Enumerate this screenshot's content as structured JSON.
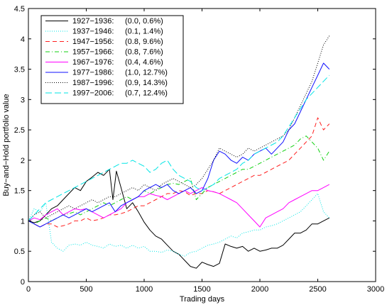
{
  "chart_data": {
    "type": "line",
    "title": "",
    "xlabel": "Trading days",
    "ylabel": "Buy−and−Hold portfolio value",
    "xlim": [
      0,
      3000
    ],
    "ylim": [
      0,
      4.5
    ],
    "xticks": [
      0,
      500,
      1000,
      1500,
      2000,
      2500,
      3000
    ],
    "yticks": [
      0,
      0.5,
      1,
      1.5,
      2,
      2.5,
      3,
      3.5,
      4,
      4.5
    ],
    "grid": false,
    "legend_position": "top-left",
    "series": [
      {
        "name": "1927−1936:",
        "stats": "(0.0, 0.6%)",
        "color": "#000000",
        "dash": "solid",
        "x": [
          0,
          50,
          100,
          150,
          200,
          250,
          300,
          350,
          400,
          450,
          500,
          550,
          600,
          650,
          700,
          730,
          760,
          800,
          850,
          900,
          950,
          1000,
          1050,
          1100,
          1150,
          1200,
          1250,
          1300,
          1350,
          1400,
          1450,
          1500,
          1550,
          1600,
          1650,
          1700,
          1750,
          1800,
          1850,
          1900,
          1950,
          2000,
          2050,
          2100,
          2150,
          2200,
          2250,
          2300,
          2350,
          2400,
          2450,
          2500,
          2550,
          2600
        ],
        "y": [
          1.0,
          0.97,
          1.0,
          1.1,
          1.2,
          1.25,
          1.35,
          1.45,
          1.55,
          1.5,
          1.65,
          1.72,
          1.8,
          1.75,
          1.85,
          1.35,
          1.82,
          1.55,
          1.2,
          1.3,
          1.15,
          0.98,
          0.85,
          0.75,
          0.7,
          0.6,
          0.5,
          0.45,
          0.35,
          0.25,
          0.22,
          0.32,
          0.28,
          0.25,
          0.3,
          0.62,
          0.58,
          0.55,
          0.58,
          0.5,
          0.55,
          0.5,
          0.52,
          0.55,
          0.55,
          0.6,
          0.7,
          0.8,
          0.8,
          0.85,
          0.95,
          0.95,
          1.0,
          1.05
        ]
      },
      {
        "name": "1937−1946:",
        "stats": "(0.1, 1.4%)",
        "color": "#00e5e5",
        "dash": "dotted",
        "x": [
          0,
          50,
          100,
          150,
          200,
          250,
          300,
          350,
          400,
          450,
          500,
          550,
          600,
          650,
          700,
          750,
          800,
          850,
          900,
          950,
          1000,
          1050,
          1100,
          1150,
          1200,
          1250,
          1300,
          1350,
          1400,
          1450,
          1500,
          1550,
          1600,
          1650,
          1700,
          1750,
          1800,
          1850,
          1900,
          1950,
          2000,
          2050,
          2100,
          2150,
          2200,
          2250,
          2300,
          2350,
          2400,
          2450,
          2500,
          2550,
          2600
        ],
        "y": [
          1.0,
          1.2,
          1.15,
          1.3,
          0.65,
          0.55,
          0.5,
          0.6,
          0.62,
          0.6,
          0.65,
          0.6,
          0.58,
          0.55,
          0.62,
          0.58,
          0.6,
          0.55,
          0.6,
          0.55,
          0.58,
          0.5,
          0.5,
          0.48,
          0.52,
          0.5,
          0.45,
          0.42,
          0.48,
          0.5,
          0.55,
          0.6,
          0.62,
          0.65,
          0.7,
          0.75,
          0.72,
          0.8,
          0.82,
          0.85,
          0.85,
          0.9,
          0.92,
          0.95,
          1.0,
          1.05,
          1.1,
          1.15,
          1.25,
          1.35,
          1.45,
          1.15,
          1.05
        ]
      },
      {
        "name": "1947−1956:",
        "stats": "(0.8, 9.6%)",
        "color": "#ff2020",
        "dash": "dashed",
        "x": [
          0,
          50,
          100,
          150,
          200,
          250,
          300,
          350,
          400,
          450,
          500,
          550,
          600,
          650,
          700,
          750,
          800,
          850,
          900,
          950,
          1000,
          1050,
          1100,
          1150,
          1200,
          1250,
          1300,
          1350,
          1400,
          1450,
          1500,
          1550,
          1600,
          1650,
          1700,
          1750,
          1800,
          1850,
          1900,
          1950,
          2000,
          2050,
          2100,
          2150,
          2200,
          2250,
          2300,
          2350,
          2400,
          2450,
          2500,
          2550,
          2600
        ],
        "y": [
          1.0,
          0.95,
          0.9,
          0.95,
          0.95,
          0.9,
          0.92,
          0.95,
          1.0,
          1.0,
          1.05,
          1.0,
          1.02,
          1.05,
          1.1,
          1.1,
          1.12,
          1.15,
          1.2,
          1.25,
          1.25,
          1.3,
          1.35,
          1.4,
          1.45,
          1.45,
          1.5,
          1.48,
          1.42,
          1.45,
          1.45,
          1.5,
          1.48,
          1.45,
          1.5,
          1.55,
          1.6,
          1.65,
          1.7,
          1.75,
          1.75,
          1.8,
          1.85,
          1.9,
          1.95,
          2.0,
          2.1,
          2.2,
          2.3,
          2.4,
          2.7,
          2.5,
          2.6
        ]
      },
      {
        "name": "1957−1966:",
        "stats": "(0.8, 7.6%)",
        "color": "#10d010",
        "dash": "dashdot",
        "x": [
          0,
          50,
          100,
          150,
          200,
          250,
          300,
          350,
          400,
          450,
          500,
          550,
          600,
          650,
          700,
          750,
          800,
          850,
          900,
          950,
          1000,
          1050,
          1100,
          1150,
          1200,
          1250,
          1300,
          1350,
          1400,
          1450,
          1500,
          1550,
          1600,
          1650,
          1700,
          1750,
          1800,
          1850,
          1900,
          1950,
          2000,
          2050,
          2100,
          2150,
          2200,
          2250,
          2300,
          2350,
          2400,
          2450,
          2500,
          2550,
          2600
        ],
        "y": [
          1.0,
          0.95,
          1.0,
          1.05,
          1.0,
          1.05,
          1.1,
          1.12,
          1.15,
          1.1,
          1.15,
          1.2,
          1.25,
          1.3,
          1.25,
          1.3,
          1.35,
          1.4,
          1.35,
          1.4,
          1.5,
          1.45,
          1.5,
          1.55,
          1.6,
          1.62,
          1.6,
          1.65,
          1.7,
          1.35,
          1.45,
          1.55,
          1.6,
          1.65,
          1.7,
          1.75,
          1.8,
          1.85,
          1.85,
          1.9,
          1.95,
          2.0,
          2.05,
          2.1,
          2.15,
          2.2,
          2.25,
          2.35,
          2.4,
          2.3,
          2.2,
          2.0,
          2.15
        ]
      },
      {
        "name": "1967−1976:",
        "stats": "(0.4, 4.6%)",
        "color": "#ff00ff",
        "dash": "solid",
        "x": [
          0,
          50,
          100,
          150,
          200,
          250,
          300,
          350,
          400,
          450,
          500,
          550,
          600,
          650,
          700,
          750,
          800,
          850,
          900,
          950,
          1000,
          1050,
          1100,
          1150,
          1200,
          1250,
          1300,
          1350,
          1400,
          1450,
          1500,
          1550,
          1600,
          1650,
          1700,
          1750,
          1800,
          1850,
          1900,
          1950,
          2000,
          2050,
          2100,
          2150,
          2200,
          2250,
          2300,
          2350,
          2400,
          2450,
          2500,
          2550,
          2600
        ],
        "y": [
          1.0,
          1.05,
          1.02,
          1.1,
          1.15,
          1.2,
          1.1,
          1.15,
          1.2,
          1.18,
          1.2,
          1.15,
          1.1,
          1.05,
          1.1,
          1.15,
          1.2,
          1.3,
          1.35,
          1.4,
          1.4,
          1.45,
          1.42,
          1.4,
          1.35,
          1.4,
          1.45,
          1.5,
          1.45,
          1.5,
          1.55,
          1.5,
          1.48,
          1.45,
          1.4,
          1.35,
          1.3,
          1.2,
          1.1,
          1.0,
          0.9,
          1.05,
          1.1,
          1.15,
          1.2,
          1.3,
          1.35,
          1.4,
          1.45,
          1.5,
          1.5,
          1.55,
          1.6
        ]
      },
      {
        "name": "1977−1986:",
        "stats": "(1.0, 12.7%)",
        "color": "#1010ff",
        "dash": "solid",
        "x": [
          0,
          50,
          100,
          150,
          200,
          250,
          300,
          350,
          400,
          450,
          500,
          550,
          600,
          650,
          700,
          750,
          800,
          850,
          900,
          950,
          1000,
          1050,
          1100,
          1150,
          1200,
          1250,
          1300,
          1350,
          1400,
          1450,
          1500,
          1550,
          1600,
          1650,
          1700,
          1750,
          1800,
          1850,
          1900,
          1950,
          2000,
          2050,
          2100,
          2150,
          2200,
          2250,
          2300,
          2350,
          2400,
          2450,
          2500,
          2550,
          2600
        ],
        "y": [
          1.0,
          0.95,
          0.9,
          0.95,
          1.0,
          1.05,
          1.1,
          1.05,
          1.1,
          1.15,
          1.2,
          1.15,
          1.2,
          1.25,
          1.3,
          1.15,
          1.25,
          1.3,
          1.35,
          1.4,
          1.5,
          1.55,
          1.6,
          1.55,
          1.6,
          1.5,
          1.45,
          1.5,
          1.55,
          1.45,
          1.5,
          1.7,
          2.0,
          2.15,
          2.1,
          2.0,
          1.95,
          2.05,
          2.0,
          2.1,
          2.15,
          2.2,
          2.1,
          2.2,
          2.3,
          2.5,
          2.6,
          2.8,
          3.0,
          3.2,
          3.4,
          3.6,
          3.5
        ]
      },
      {
        "name": "1987−1996:",
        "stats": "(0.9, 14.3%)",
        "color": "#000000",
        "dash": "dotted",
        "x": [
          0,
          50,
          100,
          150,
          200,
          250,
          300,
          350,
          400,
          450,
          500,
          550,
          600,
          650,
          700,
          750,
          800,
          850,
          900,
          950,
          1000,
          1050,
          1100,
          1150,
          1200,
          1250,
          1300,
          1350,
          1400,
          1450,
          1500,
          1550,
          1600,
          1650,
          1700,
          1750,
          1800,
          1850,
          1900,
          1950,
          2000,
          2050,
          2100,
          2150,
          2200,
          2250,
          2300,
          2350,
          2400,
          2450,
          2500,
          2550,
          2600
        ],
        "y": [
          1.0,
          1.1,
          1.15,
          1.05,
          1.1,
          1.15,
          1.2,
          1.25,
          1.2,
          1.25,
          1.3,
          1.35,
          1.3,
          1.35,
          1.4,
          1.4,
          1.45,
          1.5,
          1.55,
          1.5,
          1.6,
          1.55,
          1.5,
          1.6,
          1.65,
          1.7,
          1.65,
          1.6,
          1.55,
          1.6,
          1.7,
          1.85,
          2.0,
          2.2,
          2.15,
          2.1,
          2.05,
          2.1,
          2.2,
          2.15,
          2.2,
          2.25,
          2.3,
          2.35,
          2.4,
          2.5,
          2.7,
          2.9,
          3.1,
          3.3,
          3.6,
          3.9,
          4.05
        ]
      },
      {
        "name": "1997−2006:",
        "stats": "(0.7, 12.4%)",
        "color": "#00e5e5",
        "dash": "longdash",
        "x": [
          0,
          50,
          100,
          150,
          200,
          250,
          300,
          350,
          400,
          450,
          500,
          550,
          600,
          650,
          700,
          750,
          800,
          850,
          900,
          950,
          1000,
          1050,
          1100,
          1150,
          1200,
          1250,
          1300,
          1350,
          1400,
          1450,
          1500,
          1550,
          1600,
          1650,
          1700,
          1750,
          1800,
          1850,
          1900,
          1950,
          2000,
          2050,
          2100,
          2150,
          2200,
          2250,
          2300,
          2350,
          2400,
          2450,
          2500,
          2550,
          2600
        ],
        "y": [
          1.0,
          1.1,
          1.2,
          1.3,
          1.35,
          1.4,
          1.45,
          1.5,
          1.55,
          1.6,
          1.65,
          1.7,
          1.75,
          1.8,
          1.85,
          1.9,
          1.95,
          1.95,
          2.0,
          1.95,
          1.9,
          1.8,
          1.85,
          1.95,
          2.0,
          1.85,
          1.75,
          1.7,
          1.65,
          1.55,
          1.5,
          1.55,
          1.6,
          1.7,
          1.75,
          1.8,
          1.85,
          1.95,
          2.0,
          2.1,
          2.15,
          2.2,
          2.25,
          2.3,
          2.4,
          2.55,
          2.7,
          2.85,
          3.0,
          3.1,
          3.2,
          3.3,
          3.4
        ]
      }
    ]
  }
}
